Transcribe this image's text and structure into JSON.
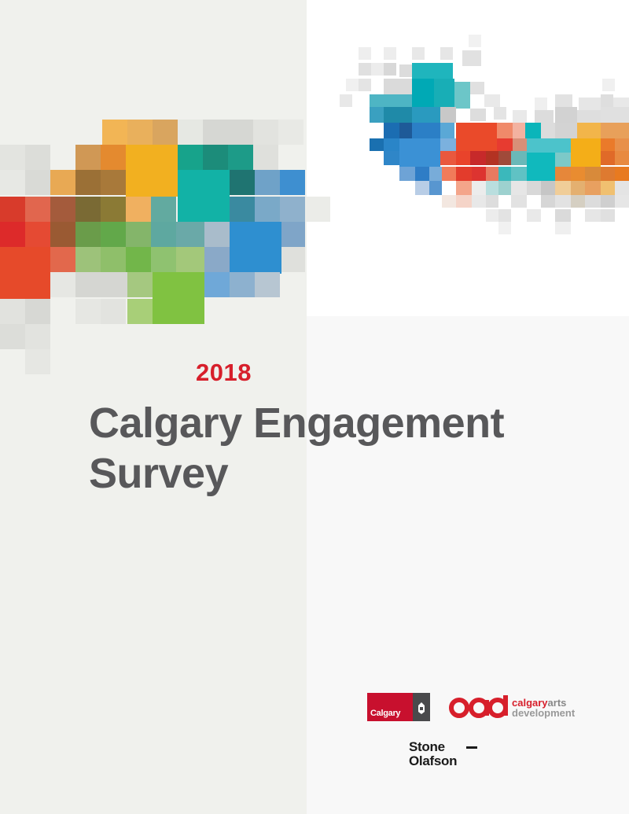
{
  "cover": {
    "year": "2018",
    "title_line1": "Calgary Engagement",
    "title_line2": "Survey"
  },
  "logos": {
    "calgary": "Calgary",
    "cad_calgary": "calgary",
    "cad_arts": "arts",
    "cad_development": "development",
    "stone": "Stone",
    "olafson": "Olafson"
  },
  "colors": {
    "accent_red": "#d71f2b",
    "title_grey": "#58585a"
  }
}
